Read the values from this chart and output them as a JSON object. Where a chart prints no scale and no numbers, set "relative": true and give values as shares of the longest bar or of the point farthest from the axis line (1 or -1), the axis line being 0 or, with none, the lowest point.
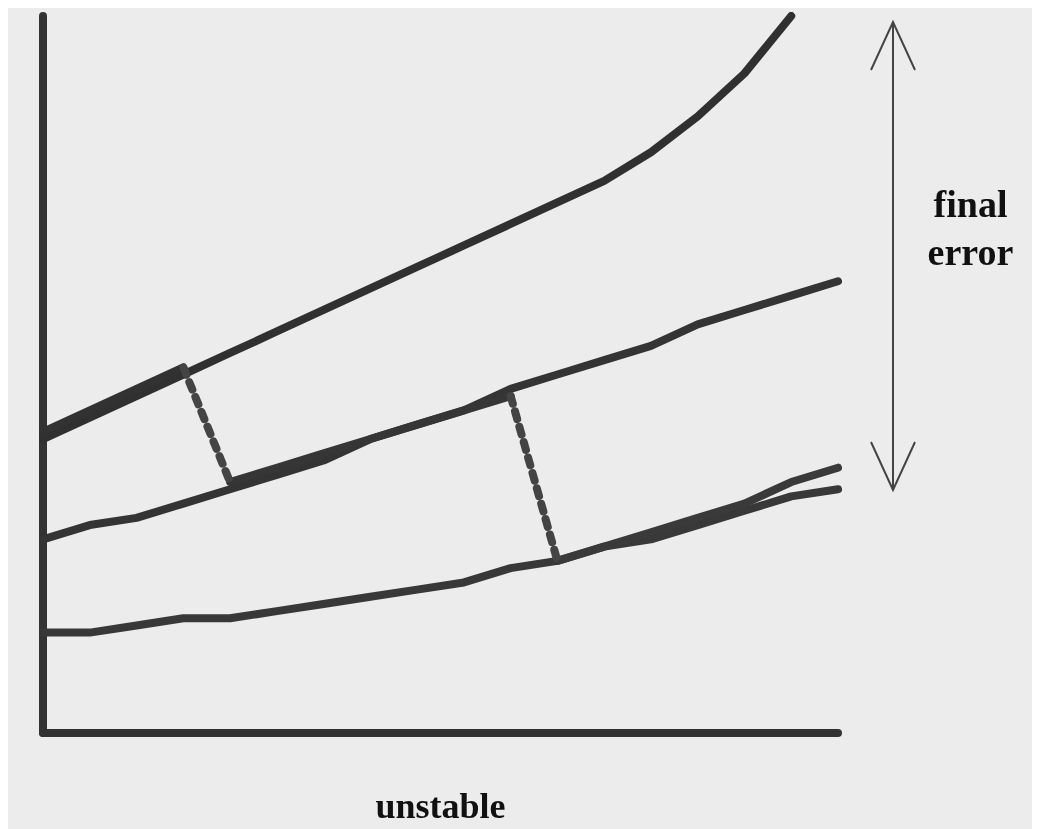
{
  "chart_data": {
    "type": "line",
    "relative": true,
    "xlabel": "unstable",
    "annotations": [
      "final error"
    ],
    "grid": false,
    "line_style": "solid",
    "categories": [
      null,
      null,
      null,
      null,
      null,
      null,
      null,
      null,
      null,
      null,
      null,
      null,
      null,
      null,
      null,
      null,
      null,
      null
    ],
    "series": [
      {
        "color": "#303030",
        "values": [
          0.41,
          0.44,
          0.47,
          0.5,
          0.53,
          0.56,
          0.59,
          0.62,
          0.65,
          0.68,
          0.71,
          0.74,
          0.77,
          0.81,
          0.86,
          0.92,
          1,
          null
        ]
      },
      {
        "color": "#323232",
        "values": [
          0.42,
          0.45,
          0.48,
          0.51,
          null,
          null,
          null,
          null,
          null,
          null,
          null,
          null,
          null,
          null,
          null,
          null,
          null,
          null
        ]
      },
      {
        "color": "#343434",
        "values": [
          0.27,
          0.29,
          0.3,
          0.32,
          0.34,
          0.36,
          0.38,
          0.41,
          0.43,
          0.45,
          0.48,
          0.5,
          0.52,
          0.54,
          0.57,
          0.59,
          0.61,
          0.63
        ]
      },
      {
        "color": "#363636",
        "values": [
          null,
          null,
          null,
          null,
          0.35,
          0.37,
          0.39,
          0.41,
          0.43,
          0.45,
          0.47,
          null,
          null,
          null,
          null,
          null,
          null,
          null
        ]
      },
      {
        "color": "#383838",
        "values": [
          0.14,
          0.14,
          0.15,
          0.16,
          0.16,
          0.17,
          0.18,
          0.19,
          0.2,
          0.21,
          0.23,
          0.24,
          0.26,
          0.27,
          0.29,
          0.31,
          0.33,
          0.34
        ]
      },
      {
        "color": "#3a3a3a",
        "values": [
          null,
          null,
          null,
          null,
          null,
          null,
          null,
          null,
          null,
          null,
          null,
          0.24,
          0.26,
          0.28,
          0.3,
          0.32,
          0.35,
          0.37
        ]
      },
      {
        "color": "#444444",
        "line_style": "dotted",
        "values": [
          null,
          null,
          null,
          0.51,
          0.35,
          null,
          null,
          null,
          null,
          null,
          null,
          null,
          null,
          null,
          null,
          null,
          null,
          null
        ]
      },
      {
        "color": "#444444",
        "line_style": "dotted",
        "values": [
          null,
          null,
          null,
          null,
          null,
          null,
          null,
          null,
          null,
          null,
          0.47,
          0.24,
          null,
          null,
          null,
          null,
          null,
          null
        ]
      }
    ]
  }
}
